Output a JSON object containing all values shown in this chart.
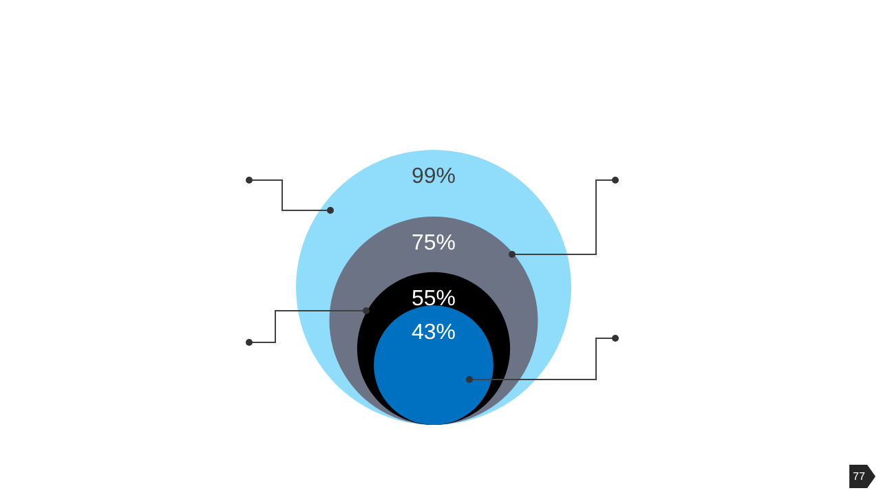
{
  "chart_data": {
    "type": "other",
    "categories": [
      null,
      null,
      null,
      null
    ],
    "values": [
      99,
      75,
      55,
      43
    ],
    "colors": [
      "#8fdcfb",
      "#6b7385",
      "#000000",
      "#0070c0"
    ],
    "value_labels": [
      "99%",
      "75%",
      "55%",
      "43%"
    ],
    "annotations": [
      "77"
    ]
  }
}
